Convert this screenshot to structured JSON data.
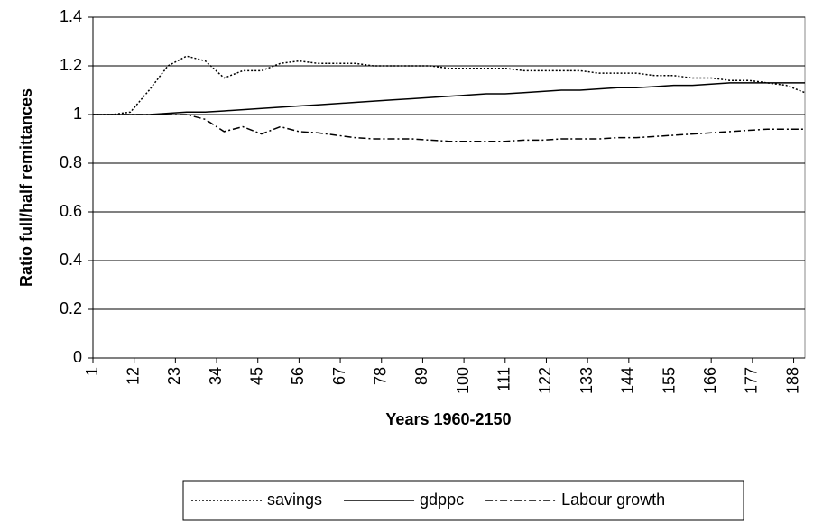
{
  "chart_data": {
    "type": "line",
    "y_label": "Ratio full/half remittances",
    "x_label": "Years 1960-2150",
    "x": [
      1,
      6,
      11,
      16,
      21,
      26,
      31,
      36,
      41,
      46,
      51,
      56,
      61,
      66,
      71,
      76,
      81,
      86,
      91,
      96,
      101,
      106,
      111,
      116,
      121,
      126,
      131,
      136,
      141,
      146,
      151,
      156,
      161,
      166,
      171,
      176,
      181,
      186,
      191
    ],
    "series": [
      {
        "name": "savings",
        "color": "#000000",
        "style": "dotted",
        "values": [
          1,
          1,
          1.01,
          1.1,
          1.2,
          1.24,
          1.22,
          1.15,
          1.18,
          1.18,
          1.21,
          1.22,
          1.21,
          1.21,
          1.21,
          1.2,
          1.2,
          1.2,
          1.2,
          1.19,
          1.19,
          1.19,
          1.19,
          1.18,
          1.18,
          1.18,
          1.18,
          1.17,
          1.17,
          1.17,
          1.16,
          1.16,
          1.15,
          1.15,
          1.14,
          1.14,
          1.13,
          1.12,
          1.09
        ]
      },
      {
        "name": "gdppc",
        "color": "#000000",
        "style": "solid",
        "values": [
          1,
          1,
          1,
          1,
          1.005,
          1.01,
          1.01,
          1.015,
          1.02,
          1.025,
          1.03,
          1.035,
          1.04,
          1.045,
          1.05,
          1.055,
          1.06,
          1.065,
          1.07,
          1.075,
          1.08,
          1.085,
          1.085,
          1.09,
          1.095,
          1.1,
          1.1,
          1.105,
          1.11,
          1.11,
          1.115,
          1.12,
          1.12,
          1.125,
          1.13,
          1.13,
          1.13,
          1.13,
          1.13
        ]
      },
      {
        "name": "Labour growth",
        "color": "#000000",
        "style": "dashdot",
        "values": [
          1,
          1,
          1,
          1,
          1,
          1.0,
          0.98,
          0.93,
          0.95,
          0.92,
          0.95,
          0.93,
          0.925,
          0.915,
          0.905,
          0.9,
          0.9,
          0.9,
          0.895,
          0.89,
          0.89,
          0.89,
          0.89,
          0.895,
          0.895,
          0.9,
          0.9,
          0.9,
          0.905,
          0.905,
          0.91,
          0.915,
          0.92,
          0.925,
          0.93,
          0.935,
          0.94,
          0.94,
          0.94
        ]
      }
    ],
    "xlim": [
      1,
      191
    ],
    "xticks": [
      1,
      12,
      23,
      34,
      45,
      56,
      67,
      78,
      89,
      100,
      111,
      122,
      133,
      144,
      155,
      166,
      177,
      188
    ],
    "ylim": [
      0,
      1.4
    ],
    "yticks": [
      0,
      0.2,
      0.4,
      0.6,
      0.8,
      1,
      1.2,
      1.4
    ],
    "grid": true,
    "legend": "bottom"
  }
}
